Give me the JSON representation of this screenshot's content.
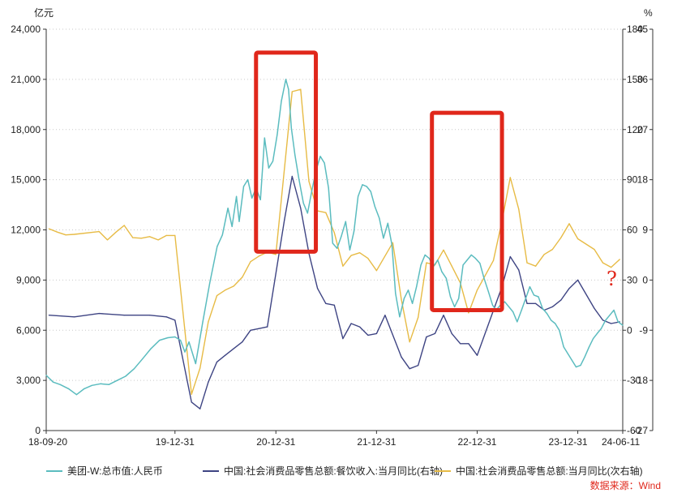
{
  "chart_data": {
    "type": "line",
    "units": {
      "left": "亿元",
      "right": "%"
    },
    "axes": {
      "left": {
        "min": 0,
        "max": 24000,
        "ticks": [
          0,
          3000,
          6000,
          9000,
          12000,
          15000,
          18000,
          21000,
          24000
        ],
        "tick_labels": [
          "0",
          "3,000",
          "6,000",
          "9,000",
          "12,000",
          "15,000",
          "18,000",
          "21,000",
          "24,000"
        ]
      },
      "right": {
        "min": -60,
        "max": 180,
        "ticks": [
          -60,
          -30,
          0,
          30,
          60,
          90,
          120,
          150,
          180
        ],
        "tick_labels": [
          "-60",
          "-30",
          "0",
          "30",
          "60",
          "90",
          "120",
          "150",
          "180"
        ]
      },
      "right2": {
        "min": -27,
        "max": 45,
        "ticks": [
          -27,
          -18,
          -9,
          0,
          9,
          18,
          27,
          36,
          45
        ],
        "tick_labels": [
          "-27",
          "-18",
          "-9",
          "0",
          "9",
          "18",
          "27",
          "36",
          "45"
        ]
      },
      "x": {
        "start": "2018-09-20",
        "end": "2024-06-11",
        "ticks": [
          "2018-09-20",
          "2019-12-31",
          "2020-12-31",
          "2021-12-31",
          "2022-12-31",
          "2023-12-31",
          "2024-06-11"
        ],
        "tick_labels": [
          "18-09-20",
          "19-12-31",
          "20-12-31",
          "21-12-31",
          "22-12-31",
          "23-12-31",
          "24-06-11"
        ]
      }
    },
    "series": [
      {
        "name": "美团-W:总市值:人民币",
        "axis": "left",
        "color": "#5bbcbf",
        "points": [
          [
            "2018-09-20",
            3300
          ],
          [
            "2018-10-15",
            2900
          ],
          [
            "2018-11-10",
            2750
          ],
          [
            "2018-12-10",
            2500
          ],
          [
            "2019-01-08",
            2150
          ],
          [
            "2019-02-05",
            2500
          ],
          [
            "2019-03-05",
            2700
          ],
          [
            "2019-04-05",
            2800
          ],
          [
            "2019-05-05",
            2750
          ],
          [
            "2019-06-05",
            3000
          ],
          [
            "2019-07-05",
            3250
          ],
          [
            "2019-08-05",
            3700
          ],
          [
            "2019-09-05",
            4300
          ],
          [
            "2019-10-05",
            4900
          ],
          [
            "2019-11-05",
            5400
          ],
          [
            "2019-12-05",
            5550
          ],
          [
            "2019-12-31",
            5600
          ],
          [
            "2020-01-20",
            5400
          ],
          [
            "2020-02-05",
            4700
          ],
          [
            "2020-02-20",
            5300
          ],
          [
            "2020-03-15",
            4000
          ],
          [
            "2020-04-10",
            6500
          ],
          [
            "2020-05-05",
            8800
          ],
          [
            "2020-06-01",
            11000
          ],
          [
            "2020-06-20",
            11700
          ],
          [
            "2020-07-10",
            13300
          ],
          [
            "2020-07-25",
            12200
          ],
          [
            "2020-08-10",
            14000
          ],
          [
            "2020-08-20",
            12500
          ],
          [
            "2020-09-05",
            14600
          ],
          [
            "2020-09-20",
            15000
          ],
          [
            "2020-10-05",
            13900
          ],
          [
            "2020-10-20",
            14500
          ],
          [
            "2020-11-05",
            13800
          ],
          [
            "2020-11-20",
            17500
          ],
          [
            "2020-12-05",
            15700
          ],
          [
            "2020-12-20",
            16100
          ],
          [
            "2021-01-05",
            17700
          ],
          [
            "2021-01-20",
            19700
          ],
          [
            "2021-02-05",
            21000
          ],
          [
            "2021-02-15",
            20400
          ],
          [
            "2021-02-25",
            18100
          ],
          [
            "2021-03-10",
            16500
          ],
          [
            "2021-03-25",
            15000
          ],
          [
            "2021-04-10",
            13600
          ],
          [
            "2021-04-25",
            13000
          ],
          [
            "2021-05-10",
            14300
          ],
          [
            "2021-05-25",
            15500
          ],
          [
            "2021-06-10",
            16400
          ],
          [
            "2021-06-25",
            16000
          ],
          [
            "2021-07-10",
            14500
          ],
          [
            "2021-07-25",
            11200
          ],
          [
            "2021-08-10",
            10900
          ],
          [
            "2021-08-25",
            11600
          ],
          [
            "2021-09-10",
            12500
          ],
          [
            "2021-09-25",
            10800
          ],
          [
            "2021-10-10",
            11900
          ],
          [
            "2021-10-25",
            14000
          ],
          [
            "2021-11-10",
            14700
          ],
          [
            "2021-11-25",
            14600
          ],
          [
            "2021-12-10",
            14300
          ],
          [
            "2021-12-25",
            13400
          ],
          [
            "2022-01-10",
            12700
          ],
          [
            "2022-01-25",
            11500
          ],
          [
            "2022-02-10",
            12400
          ],
          [
            "2022-02-25",
            11100
          ],
          [
            "2022-03-10",
            8200
          ],
          [
            "2022-03-25",
            6800
          ],
          [
            "2022-04-10",
            7900
          ],
          [
            "2022-04-25",
            8400
          ],
          [
            "2022-05-10",
            7600
          ],
          [
            "2022-05-25",
            8600
          ],
          [
            "2022-06-10",
            9900
          ],
          [
            "2022-06-25",
            10500
          ],
          [
            "2022-07-10",
            10300
          ],
          [
            "2022-07-25",
            9800
          ],
          [
            "2022-08-10",
            10200
          ],
          [
            "2022-08-25",
            9500
          ],
          [
            "2022-09-10",
            9100
          ],
          [
            "2022-09-25",
            8000
          ],
          [
            "2022-10-10",
            7400
          ],
          [
            "2022-10-25",
            7900
          ],
          [
            "2022-11-10",
            9900
          ],
          [
            "2022-11-25",
            10200
          ],
          [
            "2022-12-10",
            10500
          ],
          [
            "2022-12-25",
            10300
          ],
          [
            "2023-01-10",
            10000
          ],
          [
            "2023-01-25",
            9100
          ],
          [
            "2023-02-10",
            8300
          ],
          [
            "2023-02-25",
            7500
          ],
          [
            "2023-03-10",
            7200
          ],
          [
            "2023-03-25",
            7500
          ],
          [
            "2023-04-10",
            7700
          ],
          [
            "2023-04-25",
            7400
          ],
          [
            "2023-05-10",
            7100
          ],
          [
            "2023-05-25",
            6500
          ],
          [
            "2023-06-10",
            7200
          ],
          [
            "2023-06-25",
            7900
          ],
          [
            "2023-07-10",
            8600
          ],
          [
            "2023-07-25",
            8100
          ],
          [
            "2023-08-10",
            8000
          ],
          [
            "2023-08-25",
            7300
          ],
          [
            "2023-09-10",
            7000
          ],
          [
            "2023-09-25",
            6600
          ],
          [
            "2023-10-10",
            6400
          ],
          [
            "2023-10-25",
            6000
          ],
          [
            "2023-11-10",
            5000
          ],
          [
            "2023-11-25",
            4600
          ],
          [
            "2023-12-10",
            4200
          ],
          [
            "2023-12-25",
            3800
          ],
          [
            "2024-01-10",
            3900
          ],
          [
            "2024-01-25",
            4400
          ],
          [
            "2024-02-10",
            5000
          ],
          [
            "2024-02-25",
            5500
          ],
          [
            "2024-03-10",
            5800
          ],
          [
            "2024-03-25",
            6100
          ],
          [
            "2024-04-10",
            6600
          ],
          [
            "2024-04-25",
            6900
          ],
          [
            "2024-05-10",
            7200
          ],
          [
            "2024-05-25",
            6500
          ],
          [
            "2024-06-11",
            6300
          ]
        ]
      },
      {
        "name": "中国:社会消费品零售总额:餐饮收入:当月同比(右轴)",
        "axis": "right",
        "color": "#3e4483",
        "points": [
          [
            "2018-09-30",
            9
          ],
          [
            "2018-12-31",
            8
          ],
          [
            "2019-03-31",
            10
          ],
          [
            "2019-06-30",
            9
          ],
          [
            "2019-09-30",
            9
          ],
          [
            "2019-11-30",
            8
          ],
          [
            "2019-12-31",
            6
          ],
          [
            "2020-02-29",
            -43
          ],
          [
            "2020-03-31",
            -47
          ],
          [
            "2020-04-30",
            -31
          ],
          [
            "2020-05-31",
            -19
          ],
          [
            "2020-06-30",
            -15
          ],
          [
            "2020-07-31",
            -11
          ],
          [
            "2020-08-31",
            -7
          ],
          [
            "2020-09-30",
            0
          ],
          [
            "2020-10-31",
            1
          ],
          [
            "2020-11-30",
            2
          ],
          [
            "2021-01-31",
            66
          ],
          [
            "2021-02-28",
            92
          ],
          [
            "2021-03-31",
            73
          ],
          [
            "2021-04-30",
            46
          ],
          [
            "2021-05-31",
            25
          ],
          [
            "2021-06-30",
            16
          ],
          [
            "2021-07-31",
            15
          ],
          [
            "2021-08-31",
            -5
          ],
          [
            "2021-09-30",
            4
          ],
          [
            "2021-10-31",
            2
          ],
          [
            "2021-11-30",
            -3
          ],
          [
            "2021-12-31",
            -2
          ],
          [
            "2022-01-31",
            9
          ],
          [
            "2022-03-31",
            -16
          ],
          [
            "2022-04-30",
            -23
          ],
          [
            "2022-05-31",
            -21
          ],
          [
            "2022-06-30",
            -4
          ],
          [
            "2022-07-31",
            -2
          ],
          [
            "2022-08-31",
            9
          ],
          [
            "2022-09-30",
            -2
          ],
          [
            "2022-10-31",
            -8
          ],
          [
            "2022-11-30",
            -8
          ],
          [
            "2022-12-31",
            -15
          ],
          [
            "2023-03-31",
            26
          ],
          [
            "2023-04-30",
            44
          ],
          [
            "2023-05-31",
            36
          ],
          [
            "2023-06-30",
            16
          ],
          [
            "2023-07-31",
            16
          ],
          [
            "2023-08-31",
            12
          ],
          [
            "2023-09-30",
            14
          ],
          [
            "2023-10-31",
            18
          ],
          [
            "2023-11-30",
            25
          ],
          [
            "2023-12-31",
            30
          ],
          [
            "2024-02-29",
            13
          ],
          [
            "2024-03-31",
            6
          ],
          [
            "2024-04-30",
            4
          ],
          [
            "2024-05-31",
            5
          ]
        ]
      },
      {
        "name": "中国:社会消费品零售总额:当月同比(次右轴)",
        "axis": "right2",
        "color": "#e7bb45",
        "points": [
          [
            "2018-09-30",
            9.2
          ],
          [
            "2018-10-31",
            8.6
          ],
          [
            "2018-11-30",
            8.1
          ],
          [
            "2018-12-31",
            8.2
          ],
          [
            "2019-03-31",
            8.7
          ],
          [
            "2019-04-30",
            7.2
          ],
          [
            "2019-05-31",
            8.6
          ],
          [
            "2019-06-30",
            9.8
          ],
          [
            "2019-07-31",
            7.6
          ],
          [
            "2019-08-31",
            7.5
          ],
          [
            "2019-09-30",
            7.8
          ],
          [
            "2019-10-31",
            7.2
          ],
          [
            "2019-11-30",
            8.0
          ],
          [
            "2019-12-31",
            8.0
          ],
          [
            "2020-02-29",
            -20.5
          ],
          [
            "2020-03-31",
            -15.8
          ],
          [
            "2020-04-30",
            -7.5
          ],
          [
            "2020-05-31",
            -2.8
          ],
          [
            "2020-06-30",
            -1.8
          ],
          [
            "2020-07-31",
            -1.1
          ],
          [
            "2020-08-31",
            0.5
          ],
          [
            "2020-09-30",
            3.3
          ],
          [
            "2020-10-31",
            4.3
          ],
          [
            "2020-11-30",
            5.0
          ],
          [
            "2020-12-31",
            4.6
          ],
          [
            "2021-02-28",
            33.8
          ],
          [
            "2021-03-31",
            34.2
          ],
          [
            "2021-04-30",
            17.7
          ],
          [
            "2021-05-31",
            12.4
          ],
          [
            "2021-06-30",
            12.1
          ],
          [
            "2021-07-31",
            8.5
          ],
          [
            "2021-08-31",
            2.5
          ],
          [
            "2021-09-30",
            4.4
          ],
          [
            "2021-10-31",
            4.9
          ],
          [
            "2021-11-30",
            3.9
          ],
          [
            "2021-12-31",
            1.7
          ],
          [
            "2022-02-28",
            6.7
          ],
          [
            "2022-03-31",
            -3.5
          ],
          [
            "2022-04-30",
            -11.1
          ],
          [
            "2022-05-31",
            -6.7
          ],
          [
            "2022-06-30",
            3.1
          ],
          [
            "2022-07-31",
            2.7
          ],
          [
            "2022-08-31",
            5.4
          ],
          [
            "2022-09-30",
            2.5
          ],
          [
            "2022-10-31",
            -0.5
          ],
          [
            "2022-11-30",
            -5.9
          ],
          [
            "2022-12-31",
            -1.8
          ],
          [
            "2023-02-28",
            3.5
          ],
          [
            "2023-03-31",
            10.6
          ],
          [
            "2023-04-30",
            18.4
          ],
          [
            "2023-05-31",
            12.7
          ],
          [
            "2023-06-30",
            3.1
          ],
          [
            "2023-07-31",
            2.5
          ],
          [
            "2023-08-31",
            4.6
          ],
          [
            "2023-09-30",
            5.5
          ],
          [
            "2023-10-31",
            7.6
          ],
          [
            "2023-11-30",
            10.1
          ],
          [
            "2023-12-31",
            7.4
          ],
          [
            "2024-02-29",
            5.5
          ],
          [
            "2024-03-31",
            3.1
          ],
          [
            "2024-04-30",
            2.3
          ],
          [
            "2024-05-31",
            3.7
          ]
        ]
      }
    ],
    "annotations": {
      "boxes_color": "#e0271b",
      "boxes": [
        {
          "x_start": "2020-10-20",
          "x_end": "2021-05-25",
          "y_top": 22600,
          "y_bottom": 10700
        },
        {
          "x_start": "2022-07-20",
          "x_end": "2023-03-31",
          "y_top": 19000,
          "y_bottom": 7200
        }
      ],
      "question_mark": "?",
      "source": "数据来源：Wind"
    }
  }
}
